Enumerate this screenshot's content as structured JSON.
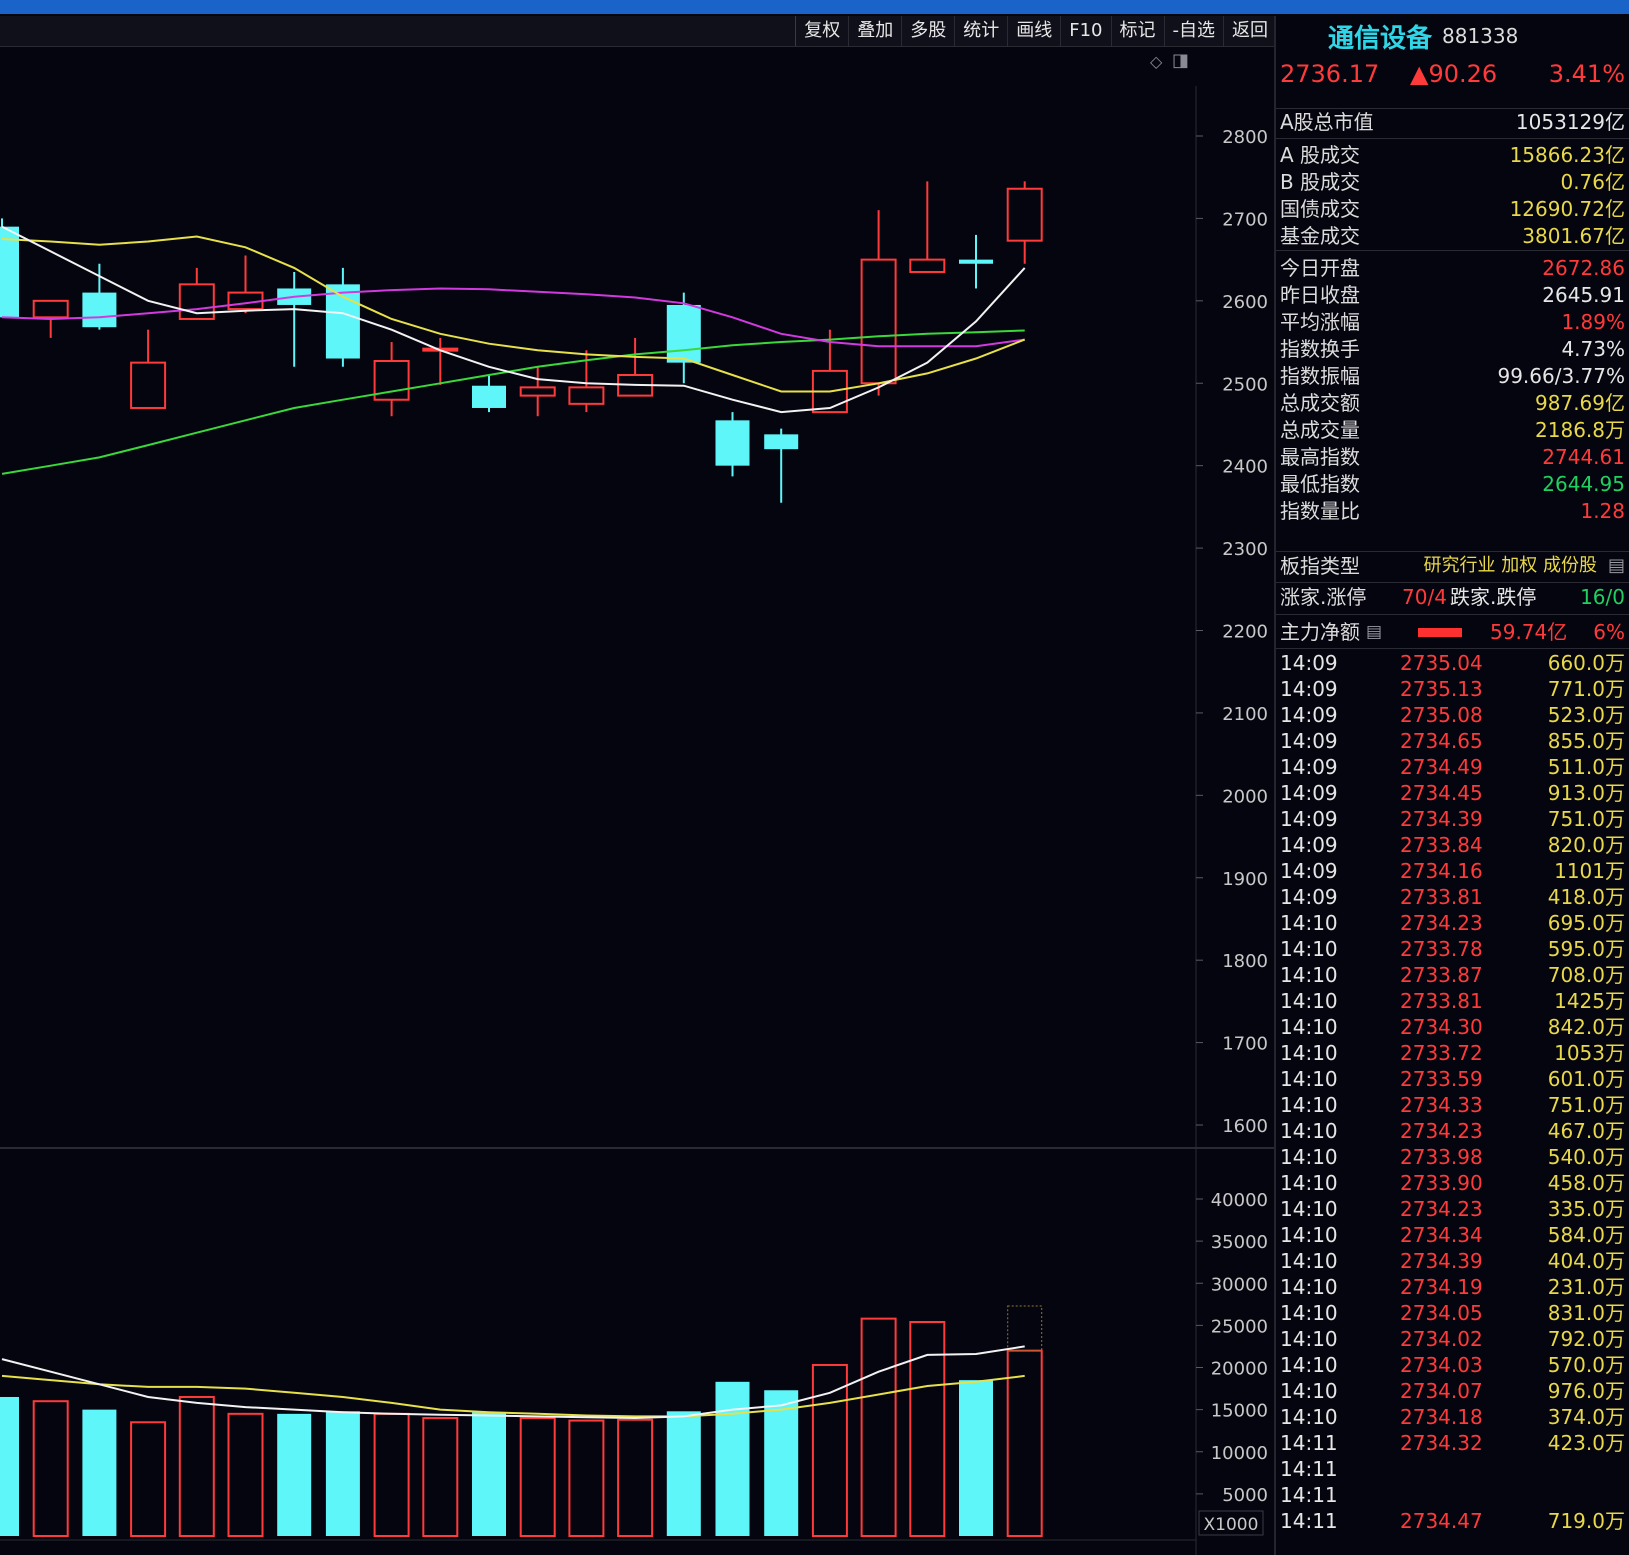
{
  "toolbar": {
    "buttons": [
      "复权",
      "叠加",
      "多股",
      "统计",
      "画线",
      "F10",
      "标记",
      "-自选",
      "返回"
    ],
    "icons": [
      "diamond-icon",
      "panel-toggle-icon"
    ]
  },
  "y_axis": {
    "price_ticks": [
      "2800",
      "2700",
      "2600",
      "2500",
      "2400",
      "2300",
      "2200",
      "2100",
      "2000",
      "1900",
      "1800",
      "1700",
      "1600"
    ],
    "volume_ticks": [
      "40000",
      "35000",
      "30000",
      "25000",
      "20000",
      "15000",
      "10000",
      "5000"
    ],
    "volume_unit": "X1000"
  },
  "chart_data": {
    "type": "candlestick",
    "price_range": [
      1550,
      2870
    ],
    "volume_range": [
      0,
      43000
    ],
    "candles": [
      {
        "o": 2690,
        "h": 2700,
        "l": 2580,
        "c": 2580
      },
      {
        "o": 2580,
        "h": 2600,
        "l": 2555,
        "c": 2600
      },
      {
        "o": 2610,
        "h": 2645,
        "l": 2565,
        "c": 2568
      },
      {
        "o": 2470,
        "h": 2565,
        "l": 2470,
        "c": 2525
      },
      {
        "o": 2578,
        "h": 2640,
        "l": 2578,
        "c": 2620
      },
      {
        "o": 2590,
        "h": 2655,
        "l": 2585,
        "c": 2610
      },
      {
        "o": 2615,
        "h": 2635,
        "l": 2520,
        "c": 2595
      },
      {
        "o": 2620,
        "h": 2640,
        "l": 2520,
        "c": 2530
      },
      {
        "o": 2480,
        "h": 2550,
        "l": 2460,
        "c": 2527
      },
      {
        "o": 2540,
        "h": 2555,
        "l": 2498,
        "c": 2542
      },
      {
        "o": 2497,
        "h": 2510,
        "l": 2465,
        "c": 2470
      },
      {
        "o": 2485,
        "h": 2520,
        "l": 2460,
        "c": 2495
      },
      {
        "o": 2475,
        "h": 2540,
        "l": 2465,
        "c": 2495
      },
      {
        "o": 2485,
        "h": 2555,
        "l": 2485,
        "c": 2510
      },
      {
        "o": 2595,
        "h": 2610,
        "l": 2500,
        "c": 2525
      },
      {
        "o": 2455,
        "h": 2465,
        "l": 2387,
        "c": 2400
      },
      {
        "o": 2438,
        "h": 2445,
        "l": 2355,
        "c": 2420
      },
      {
        "o": 2465,
        "h": 2565,
        "l": 2465,
        "c": 2515
      },
      {
        "o": 2500,
        "h": 2710,
        "l": 2485,
        "c": 2650
      },
      {
        "o": 2635,
        "h": 2745,
        "l": 2635,
        "c": 2650
      },
      {
        "o": 2650,
        "h": 2680,
        "l": 2615,
        "c": 2645
      },
      {
        "o": 2673,
        "h": 2745,
        "l": 2645,
        "c": 2736
      }
    ],
    "volume": [
      16500,
      16000,
      15000,
      13500,
      16500,
      14500,
      14500,
      14800,
      14500,
      14000,
      14700,
      14000,
      13700,
      13800,
      14800,
      18300,
      17300,
      20300,
      25800,
      25400,
      18500,
      22000
    ],
    "volume_next_outline": 27300,
    "ma_white": [
      2690,
      2660,
      2630,
      2600,
      2585,
      2588,
      2590,
      2585,
      2565,
      2540,
      2520,
      2505,
      2500,
      2498,
      2497,
      2480,
      2465,
      2470,
      2495,
      2525,
      2575,
      2640
    ],
    "ma_yellow": [
      2675,
      2672,
      2668,
      2672,
      2678,
      2665,
      2640,
      2605,
      2578,
      2560,
      2548,
      2540,
      2535,
      2532,
      2530,
      2510,
      2490,
      2490,
      2500,
      2512,
      2530,
      2553
    ],
    "ma_magenta": [
      2580,
      2578,
      2580,
      2585,
      2590,
      2597,
      2605,
      2610,
      2613,
      2615,
      2614,
      2611,
      2608,
      2604,
      2597,
      2580,
      2560,
      2550,
      2545,
      2545,
      2545,
      2553
    ],
    "ma_green": [
      2390,
      2400,
      2410,
      2425,
      2440,
      2455,
      2470,
      2480,
      2490,
      2500,
      2510,
      2520,
      2528,
      2535,
      2540,
      2546,
      2550,
      2553,
      2557,
      2560,
      2562,
      2564
    ],
    "vol_ma_white": [
      21000,
      19500,
      18000,
      16500,
      15800,
      15300,
      15000,
      14700,
      14500,
      14400,
      14300,
      14200,
      14100,
      14000,
      14200,
      15000,
      15500,
      17000,
      19500,
      21500,
      21600,
      22500
    ],
    "vol_ma_yellow": [
      19000,
      18500,
      18000,
      17700,
      17700,
      17500,
      17000,
      16500,
      15800,
      15000,
      14700,
      14500,
      14300,
      14200,
      14200,
      14500,
      15000,
      15800,
      16800,
      17800,
      18300,
      19000
    ]
  },
  "quote": {
    "name": "通信设备",
    "code": "881338",
    "price": "2736.17",
    "change": "▲90.26",
    "pct": "3.41%"
  },
  "stats": [
    {
      "label": "A股总市值",
      "value": "1053129亿",
      "color": "white"
    },
    {
      "label": " A 股成交",
      "value": "15866.23亿",
      "color": "yellow"
    },
    {
      "label": " B 股成交",
      "value": "0.76亿",
      "color": "yellow"
    },
    {
      "label": "国债成交",
      "value": "12690.72亿",
      "color": "yellow"
    },
    {
      "label": "基金成交",
      "value": "3801.67亿",
      "color": "yellow"
    },
    {
      "label": "今日开盘",
      "value": "2672.86",
      "color": "red"
    },
    {
      "label": "昨日收盘",
      "value": "2645.91",
      "color": "white"
    },
    {
      "label": "平均涨幅",
      "value": "1.89%",
      "color": "red"
    },
    {
      "label": "指数换手",
      "value": "4.73%",
      "color": "white"
    },
    {
      "label": "指数振幅",
      "value": "99.66/3.77%",
      "color": "white"
    },
    {
      "label": "总成交额",
      "value": "987.69亿",
      "color": "yellow"
    },
    {
      "label": "总成交量",
      "value": "2186.8万",
      "color": "yellow"
    },
    {
      "label": "最高指数",
      "value": "2744.61",
      "color": "red"
    },
    {
      "label": "最低指数",
      "value": "2644.95",
      "color": "green"
    },
    {
      "label": "指数量比",
      "value": "1.28",
      "color": "red"
    }
  ],
  "sector": {
    "label": "板指类型",
    "tags": [
      "研究行业",
      "加权",
      "成份股"
    ]
  },
  "limits": {
    "up_label": "涨家.涨停",
    "up_value": "70/4",
    "down_label": "跌家.跌停",
    "down_value": "16/0"
  },
  "main_force": {
    "label": "主力净额",
    "value": "59.74亿",
    "pct": "6%"
  },
  "trades": [
    {
      "time": "14:09",
      "price": "2735.04",
      "vol": "660.0万"
    },
    {
      "time": "14:09",
      "price": "2735.13",
      "vol": "771.0万"
    },
    {
      "time": "14:09",
      "price": "2735.08",
      "vol": "523.0万"
    },
    {
      "time": "14:09",
      "price": "2734.65",
      "vol": "855.0万"
    },
    {
      "time": "14:09",
      "price": "2734.49",
      "vol": "511.0万"
    },
    {
      "time": "14:09",
      "price": "2734.45",
      "vol": "913.0万"
    },
    {
      "time": "14:09",
      "price": "2734.39",
      "vol": "751.0万"
    },
    {
      "time": "14:09",
      "price": "2733.84",
      "vol": "820.0万"
    },
    {
      "time": "14:09",
      "price": "2734.16",
      "vol": "1101万"
    },
    {
      "time": "14:09",
      "price": "2733.81",
      "vol": "418.0万"
    },
    {
      "time": "14:10",
      "price": "2734.23",
      "vol": "695.0万"
    },
    {
      "time": "14:10",
      "price": "2733.78",
      "vol": "595.0万"
    },
    {
      "time": "14:10",
      "price": "2733.87",
      "vol": "708.0万"
    },
    {
      "time": "14:10",
      "price": "2733.81",
      "vol": "1425万"
    },
    {
      "time": "14:10",
      "price": "2734.30",
      "vol": "842.0万"
    },
    {
      "time": "14:10",
      "price": "2733.72",
      "vol": "1053万"
    },
    {
      "time": "14:10",
      "price": "2733.59",
      "vol": "601.0万"
    },
    {
      "time": "14:10",
      "price": "2734.33",
      "vol": "751.0万"
    },
    {
      "time": "14:10",
      "price": "2734.23",
      "vol": "467.0万"
    },
    {
      "time": "14:10",
      "price": "2733.98",
      "vol": "540.0万"
    },
    {
      "time": "14:10",
      "price": "2733.90",
      "vol": "458.0万"
    },
    {
      "time": "14:10",
      "price": "2734.23",
      "vol": "335.0万"
    },
    {
      "time": "14:10",
      "price": "2734.34",
      "vol": "584.0万"
    },
    {
      "time": "14:10",
      "price": "2734.39",
      "vol": "404.0万"
    },
    {
      "time": "14:10",
      "price": "2734.19",
      "vol": "231.0万"
    },
    {
      "time": "14:10",
      "price": "2734.05",
      "vol": "831.0万"
    },
    {
      "time": "14:10",
      "price": "2734.02",
      "vol": "792.0万"
    },
    {
      "time": "14:10",
      "price": "2734.03",
      "vol": "570.0万"
    },
    {
      "time": "14:10",
      "price": "2734.07",
      "vol": "976.0万"
    },
    {
      "time": "14:10",
      "price": "2734.18",
      "vol": "374.0万"
    },
    {
      "time": "14:11",
      "price": "2734.32",
      "vol": "423.0万"
    },
    {
      "time": "14:11",
      "price": "",
      "vol": ""
    },
    {
      "time": "14:11",
      "price": "",
      "vol": ""
    },
    {
      "time": "14:11",
      "price": "2734.47",
      "vol": "719.0万"
    }
  ],
  "colors": {
    "up": "#ff3a3a",
    "down": "#5ef6f8",
    "ma_white": "#f2f2f2",
    "ma_yellow": "#e6e04a",
    "ma_magenta": "#d23ae0",
    "ma_green": "#3ad83a",
    "axis_text": "#c8c8c8",
    "title": "#2fd6e8"
  }
}
